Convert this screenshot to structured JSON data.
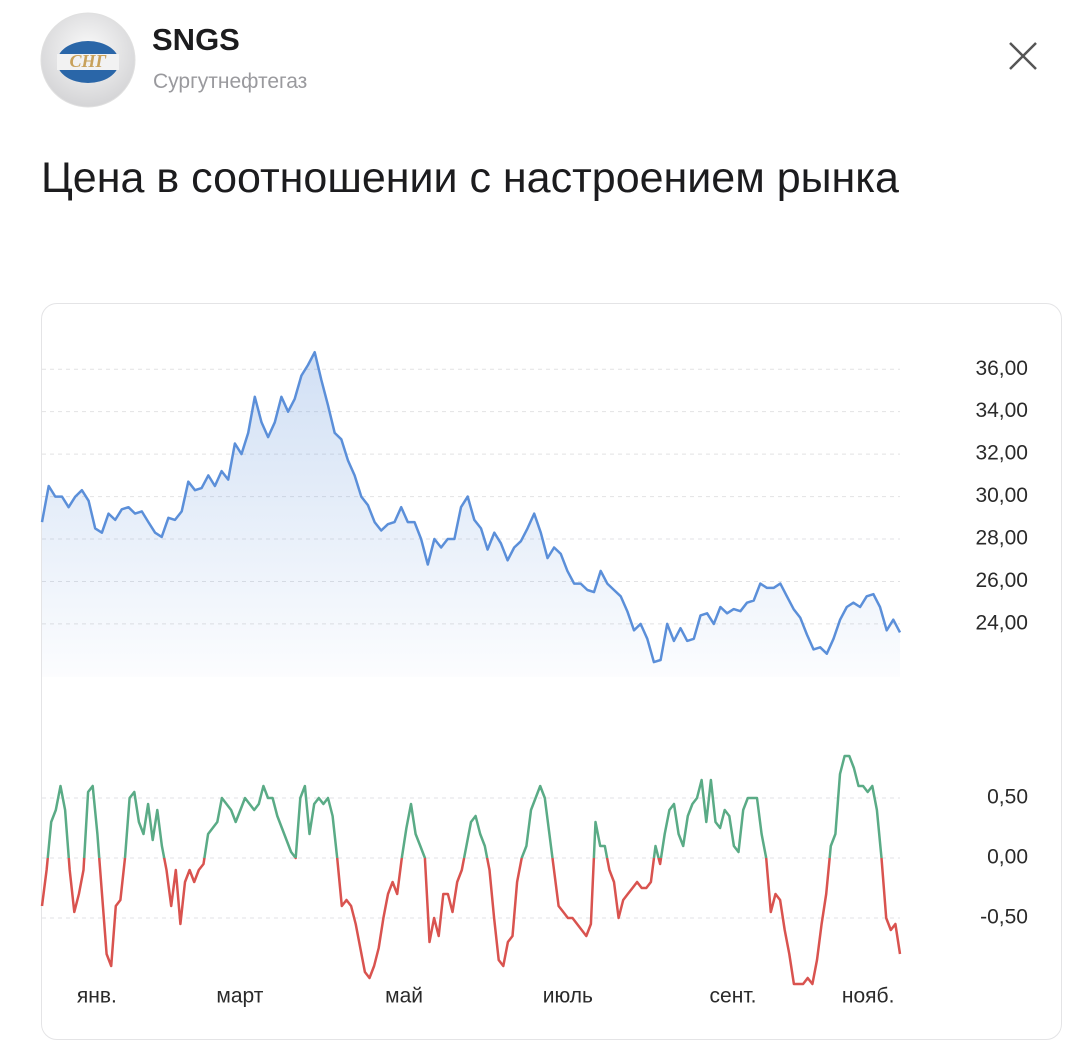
{
  "header": {
    "logo_text": "СНГ",
    "ticker": "SNGS",
    "company": "Сургутнефтегаз",
    "title": "Цена в соотношении с настроением рынка"
  },
  "chart_data": [
    {
      "type": "area",
      "color": "#5b8fd9",
      "values": [
        28.8,
        30.5,
        30.0,
        30.0,
        29.5,
        30.0,
        30.3,
        29.8,
        28.5,
        28.3,
        29.2,
        28.9,
        29.4,
        29.5,
        29.2,
        29.3,
        28.8,
        28.3,
        28.1,
        29.0,
        28.9,
        29.3,
        30.7,
        30.3,
        30.4,
        31.0,
        30.5,
        31.2,
        30.8,
        32.5,
        32.0,
        33.0,
        34.7,
        33.5,
        32.8,
        33.5,
        34.7,
        34.0,
        34.6,
        35.7,
        36.2,
        36.8,
        35.5,
        34.3,
        33.0,
        32.7,
        31.7,
        31.0,
        30.0,
        29.6,
        28.8,
        28.4,
        28.7,
        28.8,
        29.5,
        28.8,
        28.8,
        28.0,
        26.8,
        28.0,
        27.6,
        28.0,
        28.0,
        29.5,
        30.0,
        28.9,
        28.5,
        27.5,
        28.3,
        27.8,
        27.0,
        27.6,
        27.9,
        28.5,
        29.2,
        28.3,
        27.1,
        27.6,
        27.3,
        26.5,
        25.9,
        25.9,
        25.6,
        25.5,
        26.5,
        25.9,
        25.6,
        25.3,
        24.6,
        23.7,
        24.0,
        23.3,
        22.2,
        22.3,
        24.0,
        23.2,
        23.8,
        23.2,
        23.3,
        24.4,
        24.5,
        24.0,
        24.8,
        24.5,
        24.7,
        24.6,
        25.0,
        25.1,
        25.9,
        25.7,
        25.7,
        25.9,
        25.3,
        24.7,
        24.3,
        23.5,
        22.8,
        22.9,
        22.6,
        23.3,
        24.2,
        24.8,
        25.0,
        24.8,
        25.3,
        25.4,
        24.8,
        23.7,
        24.2,
        23.6
      ],
      "xlim": [
        0,
        129
      ],
      "ylim": [
        21.5,
        37
      ],
      "yticks": [
        {
          "value": 24,
          "label": "24,00"
        },
        {
          "value": 26,
          "label": "26,00"
        },
        {
          "value": 28,
          "label": "28,00"
        },
        {
          "value": 30,
          "label": "30,00"
        },
        {
          "value": 32,
          "label": "32,00"
        },
        {
          "value": 34,
          "label": "34,00"
        },
        {
          "value": 36,
          "label": "36,00"
        }
      ],
      "grid": true
    },
    {
      "type": "line",
      "positive_color": "#5aab86",
      "negative_color": "#d9534f",
      "values": [
        -0.4,
        -0.1,
        0.3,
        0.4,
        0.6,
        0.4,
        -0.1,
        -0.45,
        -0.3,
        -0.1,
        0.55,
        0.6,
        0.2,
        -0.3,
        -0.8,
        -0.9,
        -0.4,
        -0.35,
        0.0,
        0.5,
        0.55,
        0.3,
        0.2,
        0.45,
        0.15,
        0.4,
        0.1,
        -0.1,
        -0.4,
        -0.1,
        -0.55,
        -0.2,
        -0.1,
        -0.2,
        -0.1,
        -0.05,
        0.2,
        0.25,
        0.3,
        0.5,
        0.45,
        0.4,
        0.3,
        0.4,
        0.5,
        0.45,
        0.4,
        0.45,
        0.6,
        0.5,
        0.5,
        0.35,
        0.25,
        0.15,
        0.05,
        0,
        0.5,
        0.6,
        0.2,
        0.45,
        0.5,
        0.45,
        0.5,
        0.35,
        0,
        -0.4,
        -0.35,
        -0.4,
        -0.55,
        -0.75,
        -0.95,
        -1,
        -0.9,
        -0.75,
        -0.5,
        -0.3,
        -0.2,
        -0.3,
        0,
        0.25,
        0.45,
        0.2,
        0.1,
        0,
        -0.7,
        -0.5,
        -0.65,
        -0.3,
        -0.3,
        -0.45,
        -0.2,
        -0.1,
        0.1,
        0.3,
        0.35,
        0.2,
        0.1,
        -0.1,
        -0.5,
        -0.85,
        -0.9,
        -0.7,
        -0.65,
        -0.2,
        0,
        0.1,
        0.4,
        0.5,
        0.6,
        0.5,
        0.2,
        -0.1,
        -0.4,
        -0.45,
        -0.5,
        -0.5,
        -0.55,
        -0.6,
        -0.65,
        -0.55,
        0.3,
        0.1,
        0.1,
        -0.1,
        -0.2,
        -0.5,
        -0.35,
        -0.3,
        -0.25,
        -0.2,
        -0.25,
        -0.25,
        -0.2,
        0.1,
        -0.05,
        0.2,
        0.4,
        0.45,
        0.2,
        0.1,
        0.35,
        0.45,
        0.5,
        0.65,
        0.3,
        0.65,
        0.3,
        0.25,
        0.4,
        0.35,
        0.1,
        0.05,
        0.4,
        0.5,
        0.5,
        0.5,
        0.2,
        0,
        -0.45,
        -0.3,
        -0.35,
        -0.6,
        -0.8,
        -1.05,
        -1.05,
        -1.05,
        -1,
        -1.05,
        -0.85,
        -0.55,
        -0.3,
        0.1,
        0.2,
        0.7,
        0.85,
        0.85,
        0.75,
        0.6,
        0.6,
        0.55,
        0.6,
        0.4,
        0,
        -0.5,
        -0.6,
        -0.55,
        -0.8
      ],
      "xlim": [
        0,
        186
      ],
      "ylim": [
        -1.1,
        0.9
      ],
      "xticks": [
        {
          "value": 11.9,
          "label": "янв."
        },
        {
          "value": 42.9,
          "label": "март"
        },
        {
          "value": 78.5,
          "label": "май"
        },
        {
          "value": 114,
          "label": "июль"
        },
        {
          "value": 149.8,
          "label": "сент."
        },
        {
          "value": 179.1,
          "label": "нояб."
        }
      ],
      "yticks": [
        {
          "value": -0.5,
          "label": "-0,50"
        },
        {
          "value": 0,
          "label": "0,00"
        },
        {
          "value": 0.5,
          "label": "0,50"
        }
      ],
      "grid": true
    }
  ]
}
